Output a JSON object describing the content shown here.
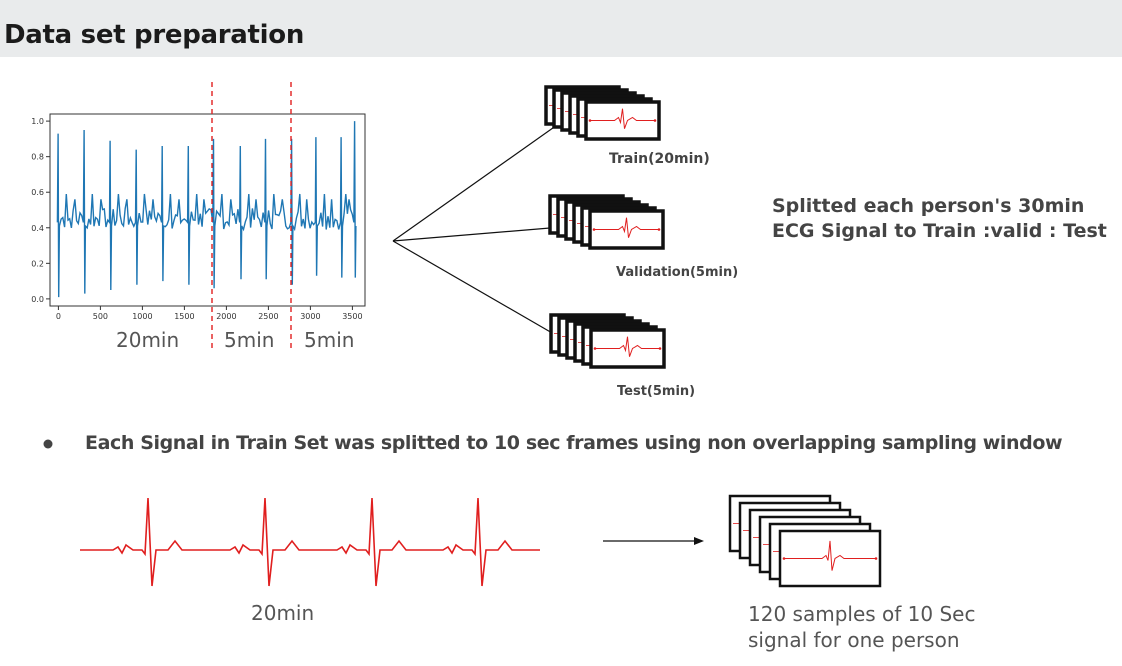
{
  "slide": {
    "title": "Data set preparation",
    "segment_labels": [
      "20min",
      "5min",
      "5min"
    ],
    "splits": [
      {
        "label": "Train(20min)"
      },
      {
        "label": "Validation(5min)"
      },
      {
        "label": "Test(5min)"
      }
    ],
    "split_description": [
      "Splitted each person's 30min",
      "ECG Signal to Train :valid : Test"
    ],
    "bullet": "Each Signal in Train Set was splitted to 10 sec frames using non overlapping sampling window",
    "bottom_left_label": "20min",
    "bottom_right_label": [
      "120 samples of 10 Sec",
      "signal for one person"
    ]
  },
  "chart_data": {
    "type": "line",
    "title": "",
    "xlabel": "",
    "ylabel": "",
    "xlim": [
      -100,
      3650
    ],
    "ylim": [
      -0.04,
      1.04
    ],
    "x_ticks": [
      "0",
      "500",
      "1000",
      "1500",
      "2000",
      "2500",
      "3000",
      "3500"
    ],
    "y_ticks": [
      "0.0",
      "0.2",
      "0.4",
      "0.6",
      "0.8",
      "1.0"
    ],
    "split_lines_x": [
      1850,
      2850
    ],
    "series": [
      {
        "color": "#1f77b4",
        "peaks": [
          {
            "x": 0,
            "top": 0.93,
            "low": 0.01
          },
          {
            "x": 310,
            "top": 0.95,
            "low": 0.03
          },
          {
            "x": 620,
            "top": 0.89,
            "low": 0.05
          },
          {
            "x": 930,
            "top": 0.84,
            "low": 0.08
          },
          {
            "x": 1240,
            "top": 0.86,
            "low": 0.1
          },
          {
            "x": 1550,
            "top": 0.86,
            "low": 0.08
          },
          {
            "x": 1850,
            "top": 0.9,
            "low": 0.06
          },
          {
            "x": 2170,
            "top": 0.86,
            "low": 0.11
          },
          {
            "x": 2470,
            "top": 0.9,
            "low": 0.11
          },
          {
            "x": 2780,
            "top": 0.9,
            "low": 0.08
          },
          {
            "x": 3070,
            "top": 0.91,
            "low": 0.13
          },
          {
            "x": 3370,
            "top": 0.91,
            "low": 0.12
          },
          {
            "x": 3530,
            "top": 1.0,
            "low": 0.12
          }
        ],
        "baseline": 0.45
      }
    ]
  }
}
